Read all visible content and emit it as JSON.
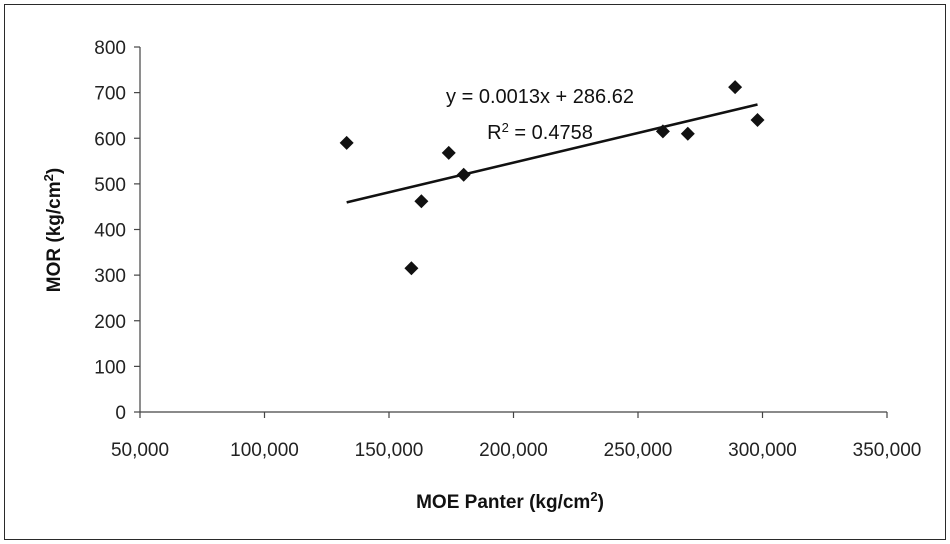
{
  "chart_data": {
    "type": "scatter",
    "xlabel_main": "MOE Panter (kg/cm",
    "xlabel_sup": "2",
    "xlabel_tail": ")",
    "ylabel_main": "MOR (kg/cm",
    "ylabel_sup": "2",
    "ylabel_tail": ")",
    "xlim": [
      50000,
      350000
    ],
    "ylim": [
      0,
      800
    ],
    "x_ticks": [
      50000,
      100000,
      150000,
      200000,
      250000,
      300000,
      350000
    ],
    "x_tick_labels": [
      "50,000",
      "100,000",
      "150,000",
      "200,000",
      "250,000",
      "300,000",
      "350,000"
    ],
    "y_ticks": [
      0,
      100,
      200,
      300,
      400,
      500,
      600,
      700,
      800
    ],
    "y_tick_labels": [
      "0",
      "100",
      "200",
      "300",
      "400",
      "500",
      "600",
      "700",
      "800"
    ],
    "grid": false,
    "legend": "none",
    "marker": "diamond",
    "marker_color": "#111111",
    "points": [
      {
        "x": 133000,
        "y": 590
      },
      {
        "x": 159000,
        "y": 315
      },
      {
        "x": 163000,
        "y": 462
      },
      {
        "x": 174000,
        "y": 568
      },
      {
        "x": 180000,
        "y": 520
      },
      {
        "x": 260000,
        "y": 615
      },
      {
        "x": 270000,
        "y": 610
      },
      {
        "x": 289000,
        "y": 712
      },
      {
        "x": 298000,
        "y": 640
      }
    ],
    "trendline": {
      "x_start": 133000,
      "x_end": 298000,
      "slope": 0.0013,
      "intercept": 286.62,
      "equation": "y = 0.0013x + 286.62",
      "r2_prefix": "R",
      "r2_sup": "2",
      "r2_suffix": " = 0.4758"
    }
  }
}
